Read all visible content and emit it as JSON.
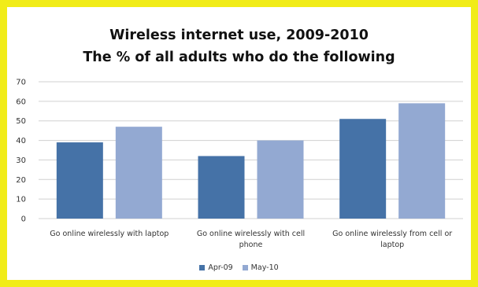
{
  "chart_data": {
    "type": "bar",
    "title": "Wireless internet use, 2009-2010",
    "subtitle": "The % of all adults who do the following",
    "categories": [
      [
        "Go online wirelessly with laptop"
      ],
      [
        "Go online wirelessly with cell",
        "phone"
      ],
      [
        "Go online wirelessly from cell or",
        "laptop"
      ]
    ],
    "series": [
      {
        "name": "Apr-09",
        "color": "#4572a7",
        "values": [
          39,
          32,
          51
        ]
      },
      {
        "name": "May-10",
        "color": "#93a9d2",
        "values": [
          47,
          40,
          59
        ]
      }
    ],
    "ylim": [
      0,
      70
    ],
    "yticks": [
      0,
      10,
      20,
      30,
      40,
      50,
      60,
      70
    ],
    "grid": true,
    "legend_position": "bottom"
  }
}
